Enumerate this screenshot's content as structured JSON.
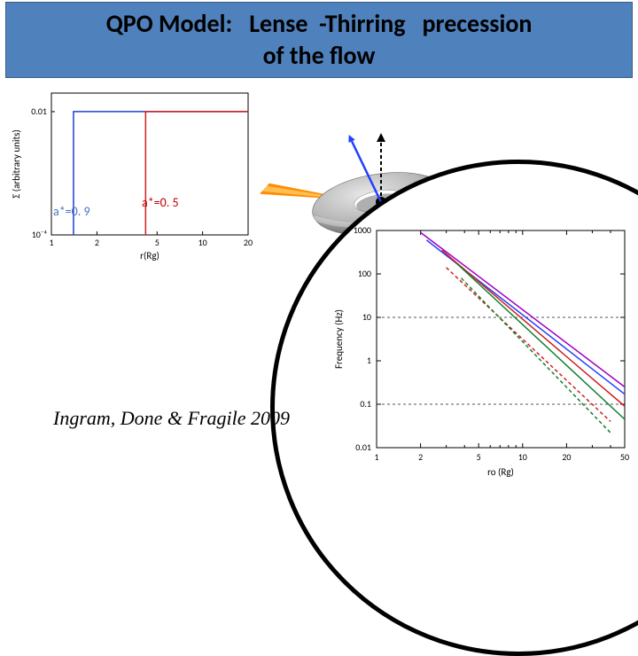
{
  "title": "QPO Model:   Lense  -Thirring   precession\nof the flow",
  "citation": "Ingram, Done & Fragile 2009",
  "spin_labels": {
    "a09": "a*=0. 9",
    "a05": "a*=0. 5"
  },
  "left_chart": {
    "type": "line",
    "xlabel": "r(Rg)",
    "ylabel": "Σ (arbitrary units)",
    "xlim": [
      1,
      20
    ],
    "ylim": [
      0.0001,
      0.02
    ],
    "xticks": [
      1,
      2,
      5,
      10,
      20
    ],
    "yticks_labels": [
      "10⁻⁴",
      "0.01"
    ],
    "xscale": "log",
    "yscale": "log",
    "series": [
      {
        "name": "a09",
        "color": "#2040d0",
        "x": [
          1.4,
          1.4,
          20
        ],
        "y": [
          0.0001,
          0.01,
          0.01
        ]
      },
      {
        "name": "a05",
        "color": "#d02020",
        "x": [
          4.2,
          4.2,
          20
        ],
        "y": [
          0.0001,
          0.01,
          0.01
        ]
      }
    ],
    "axis_color": "#000000",
    "background": "#ffffff",
    "font_size": 10
  },
  "torus": {
    "type": "infographic",
    "torus_color": "#b8b8b8",
    "torus_shadow": "#606060",
    "bh_color": "#000000",
    "spin_axis_color": "#000000",
    "spin_axis_dash": "4,3",
    "tilt_axis_color": "#2040ff",
    "jet_color_outer": "#ff8c00",
    "jet_color_inner": "#ffcc66",
    "tilt_angle_deg": 25
  },
  "right_chart": {
    "type": "line",
    "xlabel": "ro (Rg)",
    "ylabel": "Frequency (Hz)",
    "xlim": [
      1,
      50
    ],
    "ylim": [
      0.01,
      1000
    ],
    "xscale": "log",
    "yscale": "log",
    "xticks": [
      1,
      2,
      5,
      10,
      20,
      50
    ],
    "yticks": [
      0.01,
      0.1,
      1,
      10,
      100,
      1000
    ],
    "hguides": [
      0.1,
      10
    ],
    "hguide_dash": "3,3",
    "hguide_color": "#555555",
    "series": [
      {
        "color": "#a000c0",
        "dash": "none",
        "x": [
          2,
          50
        ],
        "y": [
          900,
          0.25
        ]
      },
      {
        "color": "#2040ff",
        "dash": "none",
        "x": [
          2.2,
          50
        ],
        "y": [
          600,
          0.17
        ]
      },
      {
        "color": "#d02020",
        "dash": "none",
        "x": [
          2.8,
          50
        ],
        "y": [
          350,
          0.09
        ]
      },
      {
        "color": "#108030",
        "dash": "none",
        "x": [
          3.5,
          50
        ],
        "y": [
          180,
          0.045
        ]
      },
      {
        "color": "#d02020",
        "dash": "4,3",
        "x": [
          3.0,
          40
        ],
        "y": [
          140,
          0.04
        ]
      },
      {
        "color": "#108030",
        "dash": "4,3",
        "x": [
          3.8,
          40
        ],
        "y": [
          80,
          0.022
        ]
      }
    ],
    "axis_color": "#000000",
    "background": "#ffffff",
    "font_size": 10
  }
}
